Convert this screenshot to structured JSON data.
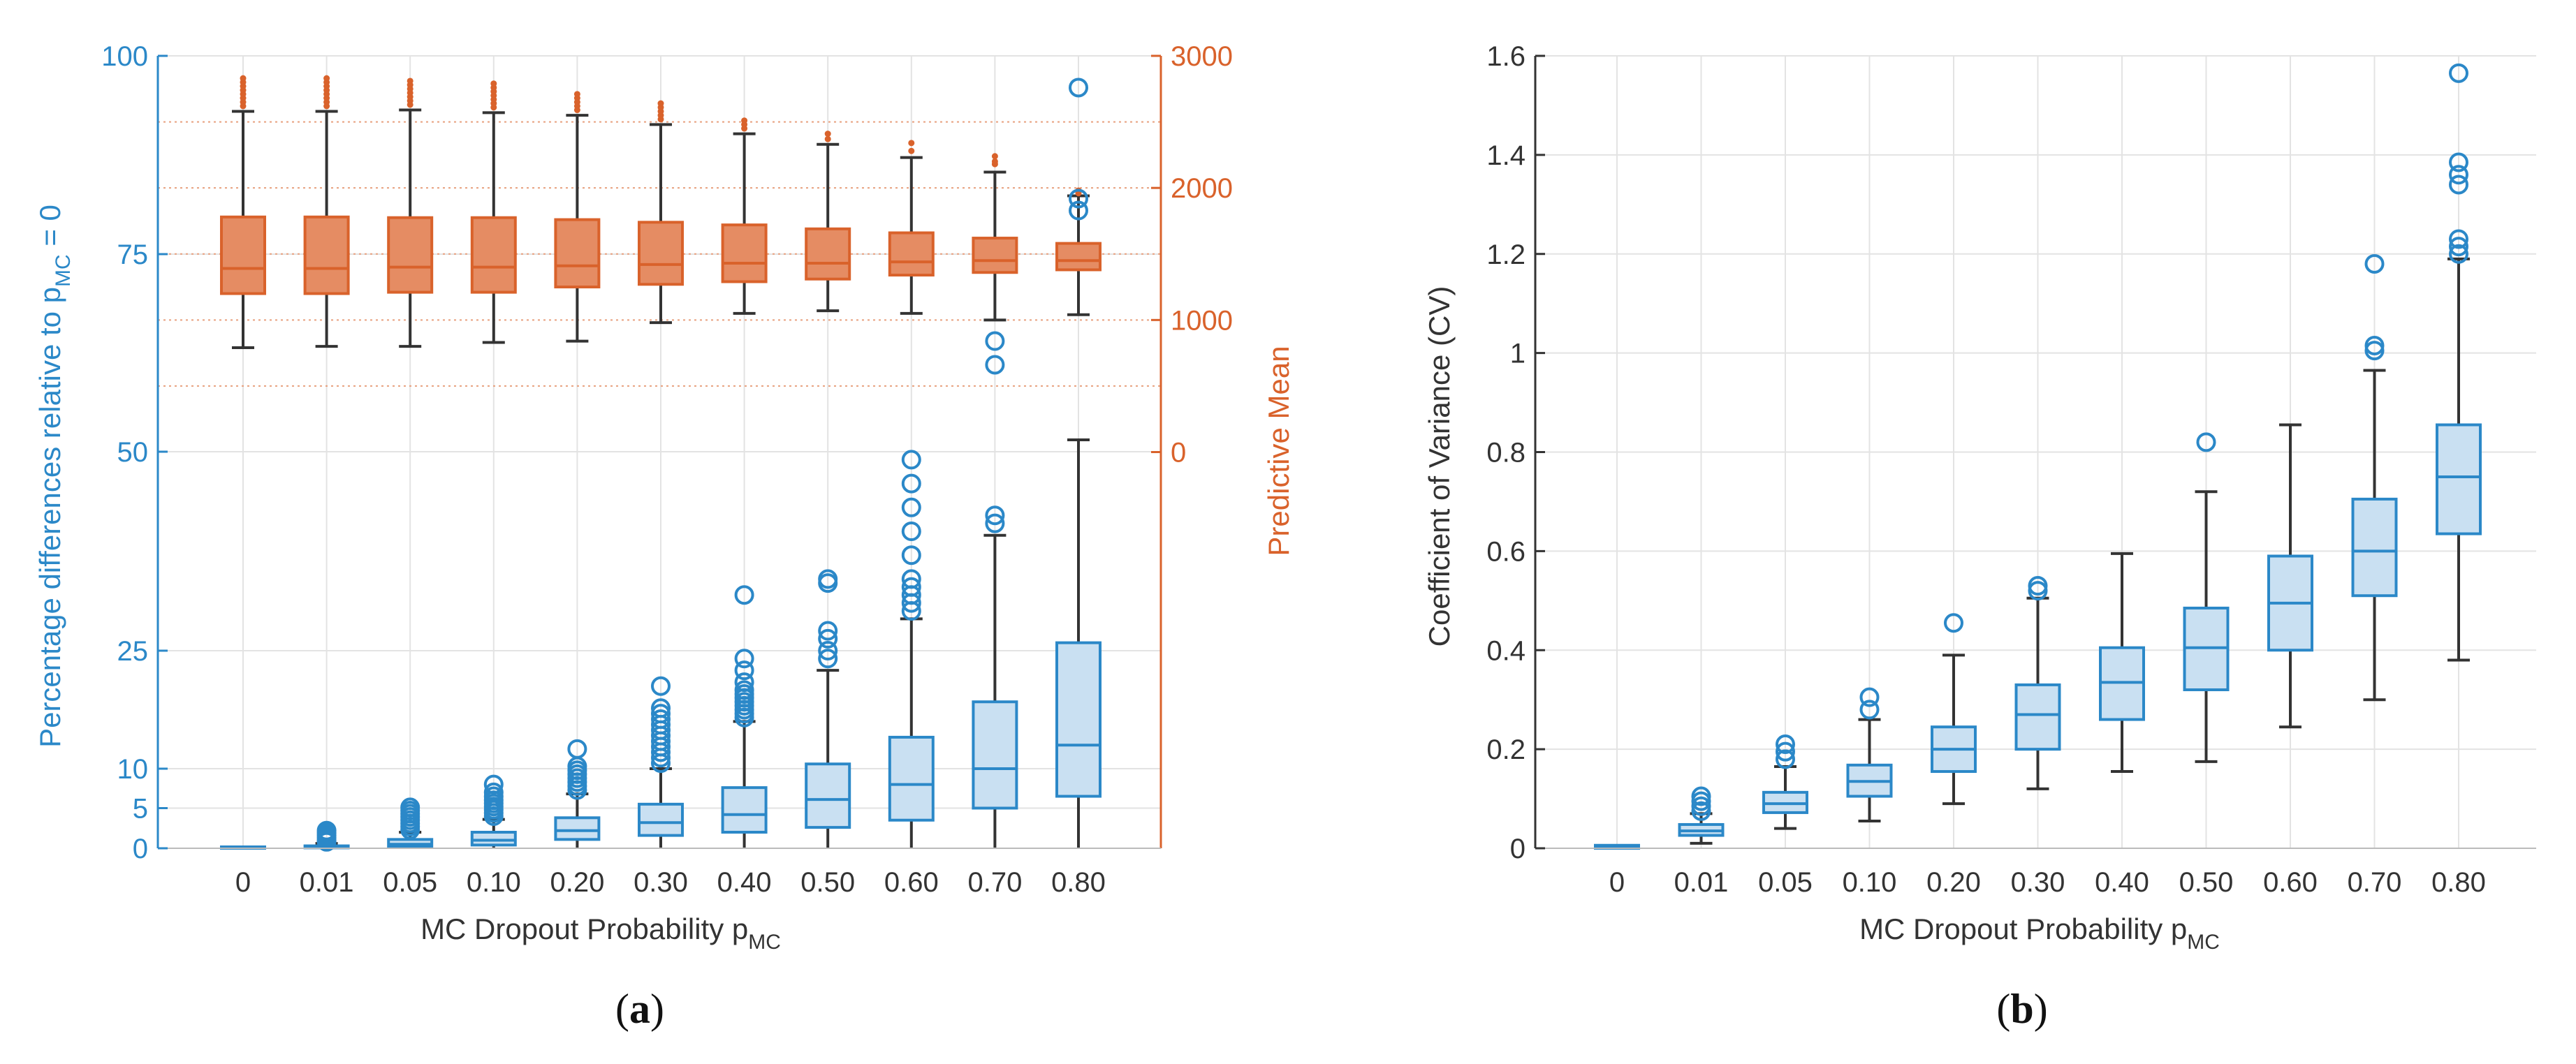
{
  "chart_data": [
    {
      "panel": "a",
      "type": "box",
      "panel_label_open": "(",
      "panel_label_letter": "a",
      "panel_label_close": ")",
      "xlabel": "MC Dropout Probability p",
      "xlabel_sub": "MC",
      "categories": [
        "0",
        "0.01",
        "0.05",
        "0.10",
        "0.20",
        "0.30",
        "0.40",
        "0.50",
        "0.60",
        "0.70",
        "0.80"
      ],
      "left_axis": {
        "label_main": "Percentage differences relative to p",
        "label_sub": "MC",
        "label_end": " = 0",
        "color": "#2b88c8",
        "ticks": [
          0,
          5,
          10,
          25,
          50,
          75,
          100
        ],
        "tick_labels": [
          "0",
          "5",
          "10",
          "25",
          "50",
          "75",
          "100"
        ]
      },
      "right_axis": {
        "label": "Predictive Mean",
        "color": "#d9622b",
        "ticks": [
          0,
          1000,
          2000,
          3000
        ],
        "tick_labels": [
          "0",
          "1000",
          "2000",
          "3000"
        ],
        "range": [
          -3000,
          3000
        ]
      },
      "series": [
        {
          "name": "Percentage differences",
          "axis": "left",
          "color": "#2b88c8",
          "boxes": [
            {
              "q1": 0,
              "median": 0,
              "q3": 0,
              "lo": 0,
              "hi": 0,
              "outliers": []
            },
            {
              "q1": 0.05,
              "median": 0.1,
              "q3": 0.3,
              "lo": 0,
              "hi": 0.6,
              "outliers": [
                0.8,
                1.0,
                1.3,
                1.6,
                1.9,
                2.2
              ]
            },
            {
              "q1": 0.2,
              "median": 0.5,
              "q3": 1.1,
              "lo": 0,
              "hi": 2.0,
              "outliers": [
                2.3,
                2.7,
                3.1,
                3.5,
                3.9,
                4.3,
                4.7,
                5.1
              ]
            },
            {
              "q1": 0.4,
              "median": 1.0,
              "q3": 2.0,
              "lo": 0,
              "hi": 3.6,
              "outliers": [
                4.0,
                4.4,
                4.8,
                5.2,
                5.6,
                6.0,
                6.5,
                7.0,
                8.0
              ]
            },
            {
              "q1": 1.1,
              "median": 2.2,
              "q3": 3.8,
              "lo": 0,
              "hi": 6.8,
              "outliers": [
                7.3,
                7.8,
                8.3,
                8.8,
                9.3,
                9.8,
                10.3,
                12.5
              ]
            },
            {
              "q1": 1.6,
              "median": 3.2,
              "q3": 5.5,
              "lo": 0,
              "hi": 10.0,
              "outliers": [
                10.7,
                11.4,
                12.1,
                12.8,
                13.5,
                14.2,
                14.9,
                15.6,
                16.3,
                17.0,
                17.7,
                20.5
              ]
            },
            {
              "q1": 2.0,
              "median": 4.2,
              "q3": 7.6,
              "lo": 0,
              "hi": 16.0,
              "outliers": [
                16.5,
                17.0,
                17.5,
                18.0,
                18.5,
                19.0,
                19.5,
                20.0,
                21.0,
                22.5,
                24.0,
                32.0
              ]
            },
            {
              "q1": 2.6,
              "median": 6.1,
              "q3": 10.6,
              "lo": 0,
              "hi": 22.5,
              "outliers": [
                24.0,
                25.0,
                26.5,
                27.5,
                33.5,
                34.0
              ]
            },
            {
              "q1": 3.5,
              "median": 8.0,
              "q3": 14.0,
              "lo": 0,
              "hi": 29.0,
              "outliers": [
                30.0,
                31.0,
                32.0,
                33.0,
                34.0,
                37.0,
                40.0,
                43.0,
                46.0,
                49.0
              ]
            },
            {
              "q1": 5.0,
              "median": 10.0,
              "q3": 18.5,
              "lo": 0,
              "hi": 39.5,
              "outliers": [
                41.0,
                42.0,
                61.0,
                64.0
              ]
            },
            {
              "q1": 6.5,
              "median": 13.0,
              "q3": 26.0,
              "lo": 0,
              "hi": 51.5,
              "outliers": [
                80.5,
                82.0,
                96.0
              ]
            }
          ]
        },
        {
          "name": "Predictive Mean",
          "axis": "right",
          "color": "#d9622b",
          "fill": "#e58c63",
          "boxes": [
            {
              "q1": 1200,
              "median": 1390,
              "q3": 1780,
              "lo": 790,
              "hi": 2580,
              "outliers": [
                2620,
                2650,
                2680,
                2710,
                2740,
                2770,
                2800,
                2830
              ]
            },
            {
              "q1": 1200,
              "median": 1390,
              "q3": 1780,
              "lo": 800,
              "hi": 2580,
              "outliers": [
                2620,
                2650,
                2680,
                2710,
                2740,
                2770,
                2800,
                2830
              ]
            },
            {
              "q1": 1210,
              "median": 1400,
              "q3": 1775,
              "lo": 800,
              "hi": 2590,
              "outliers": [
                2630,
                2660,
                2690,
                2720,
                2750,
                2780,
                2810
              ]
            },
            {
              "q1": 1210,
              "median": 1400,
              "q3": 1775,
              "lo": 830,
              "hi": 2570,
              "outliers": [
                2610,
                2640,
                2670,
                2700,
                2730,
                2760,
                2790
              ]
            },
            {
              "q1": 1250,
              "median": 1410,
              "q3": 1760,
              "lo": 840,
              "hi": 2550,
              "outliers": [
                2590,
                2620,
                2650,
                2680,
                2710
              ]
            },
            {
              "q1": 1270,
              "median": 1420,
              "q3": 1740,
              "lo": 980,
              "hi": 2480,
              "outliers": [
                2520,
                2550,
                2580,
                2610,
                2640
              ]
            },
            {
              "q1": 1290,
              "median": 1430,
              "q3": 1720,
              "lo": 1050,
              "hi": 2410,
              "outliers": [
                2450,
                2480,
                2510
              ]
            },
            {
              "q1": 1310,
              "median": 1430,
              "q3": 1690,
              "lo": 1070,
              "hi": 2330,
              "outliers": [
                2370,
                2410
              ]
            },
            {
              "q1": 1340,
              "median": 1440,
              "q3": 1660,
              "lo": 1050,
              "hi": 2230,
              "outliers": [
                2280,
                2340
              ]
            },
            {
              "q1": 1360,
              "median": 1450,
              "q3": 1620,
              "lo": 1000,
              "hi": 2120,
              "outliers": [
                2180,
                2200,
                2240
              ]
            },
            {
              "q1": 1380,
              "median": 1450,
              "q3": 1580,
              "lo": 1040,
              "hi": 1940,
              "outliers": [
                1960,
                1980
              ]
            }
          ]
        }
      ],
      "grid": "on",
      "right_dotted_gridlines": [
        500,
        1000,
        1500,
        2000,
        2500
      ]
    },
    {
      "panel": "b",
      "type": "box",
      "panel_label_open": "(",
      "panel_label_letter": "b",
      "panel_label_close": ")",
      "xlabel": "MC Dropout Probability p",
      "xlabel_sub": "MC",
      "ylabel": "Coefficient of Variance (CV)",
      "categories": [
        "0",
        "0.01",
        "0.05",
        "0.10",
        "0.20",
        "0.30",
        "0.40",
        "0.50",
        "0.60",
        "0.70",
        "0.80"
      ],
      "ylim": [
        0,
        1.6
      ],
      "yticks": [
        0,
        0.2,
        0.4,
        0.6,
        0.8,
        1,
        1.2,
        1.4,
        1.6
      ],
      "ytick_labels": [
        "0",
        "0.2",
        "0.4",
        "0.6",
        "0.8",
        "1",
        "1.2",
        "1.4",
        "1.6"
      ],
      "color": "#2b88c8",
      "grid": "on",
      "boxes": [
        {
          "q1": 0,
          "median": 0.003,
          "q3": 0.006,
          "lo": 0,
          "hi": 0.008,
          "outliers": []
        },
        {
          "q1": 0.026,
          "median": 0.035,
          "q3": 0.048,
          "lo": 0.01,
          "hi": 0.07,
          "outliers": [
            0.075,
            0.085,
            0.095,
            0.105
          ]
        },
        {
          "q1": 0.072,
          "median": 0.09,
          "q3": 0.113,
          "lo": 0.04,
          "hi": 0.165,
          "outliers": [
            0.18,
            0.195,
            0.21
          ]
        },
        {
          "q1": 0.105,
          "median": 0.135,
          "q3": 0.168,
          "lo": 0.055,
          "hi": 0.26,
          "outliers": [
            0.28,
            0.305
          ]
        },
        {
          "q1": 0.155,
          "median": 0.2,
          "q3": 0.245,
          "lo": 0.09,
          "hi": 0.39,
          "outliers": [
            0.455
          ]
        },
        {
          "q1": 0.2,
          "median": 0.27,
          "q3": 0.33,
          "lo": 0.12,
          "hi": 0.505,
          "outliers": [
            0.52,
            0.53
          ]
        },
        {
          "q1": 0.26,
          "median": 0.335,
          "q3": 0.405,
          "lo": 0.155,
          "hi": 0.595,
          "outliers": []
        },
        {
          "q1": 0.32,
          "median": 0.405,
          "q3": 0.485,
          "lo": 0.175,
          "hi": 0.72,
          "outliers": [
            0.82
          ]
        },
        {
          "q1": 0.4,
          "median": 0.495,
          "q3": 0.59,
          "lo": 0.245,
          "hi": 0.855,
          "outliers": []
        },
        {
          "q1": 0.51,
          "median": 0.6,
          "q3": 0.705,
          "lo": 0.3,
          "hi": 0.965,
          "outliers": [
            1.005,
            1.015,
            1.18
          ]
        },
        {
          "q1": 0.635,
          "median": 0.75,
          "q3": 0.855,
          "lo": 0.38,
          "hi": 1.19,
          "outliers": [
            1.2,
            1.215,
            1.23,
            1.34,
            1.36,
            1.385,
            1.565
          ]
        }
      ]
    }
  ]
}
